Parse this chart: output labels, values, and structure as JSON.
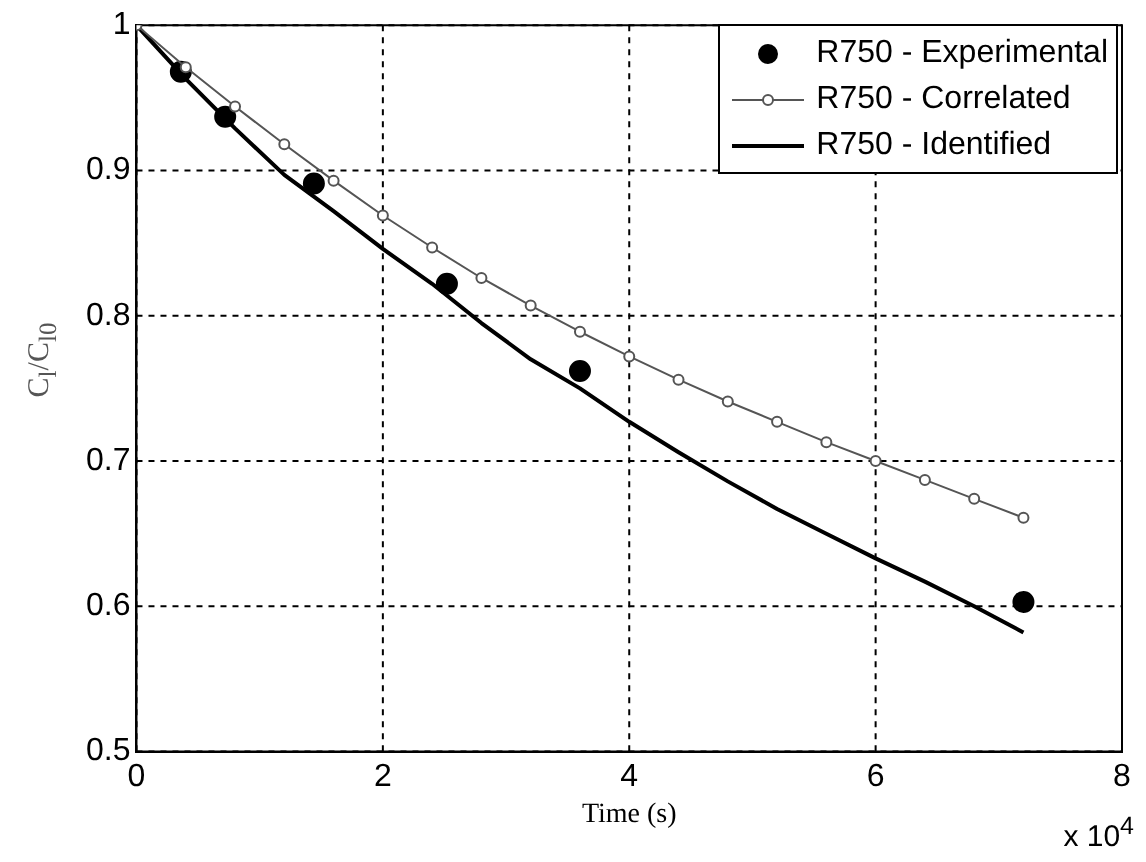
{
  "chart_data": {
    "type": "line",
    "xlabel": "Time (s)",
    "ylabel": "C$_{l}$/C$_{l0}$",
    "xlim": [
      0,
      8
    ],
    "xticks": [
      0,
      2,
      4,
      6,
      8
    ],
    "ylim": [
      0.5,
      1
    ],
    "yticks": [
      0.5,
      0.6,
      0.7,
      0.8,
      0.9,
      1
    ],
    "grid": true,
    "legend": "top right",
    "annotations": [
      "x 10$^{4}$"
    ],
    "series": [
      {
        "name": "R750 - Experimental",
        "type": "scatter",
        "marker": "circle",
        "color": "#000000",
        "x": [
          0.36,
          0.72,
          1.44,
          2.52,
          3.6,
          7.2
        ],
        "values": [
          0.968,
          0.937,
          0.891,
          0.822,
          0.762,
          0.603
        ]
      },
      {
        "name": "R750 - Correlated",
        "marker": "circle",
        "color": "#555555",
        "x": [
          0,
          0.4,
          0.8,
          1.2,
          1.6,
          2.0,
          2.4,
          2.8,
          3.2,
          3.6,
          4.0,
          4.4,
          4.8,
          5.2,
          5.6,
          6.0,
          6.4,
          6.8,
          7.2
        ],
        "values": [
          1.0,
          0.971,
          0.944,
          0.918,
          0.893,
          0.869,
          0.847,
          0.826,
          0.807,
          0.789,
          0.772,
          0.756,
          0.741,
          0.727,
          0.713,
          0.7,
          0.687,
          0.674,
          0.661
        ]
      },
      {
        "name": "R750 - Identified",
        "marker": "none",
        "color": "#000000",
        "x": [
          0,
          0.4,
          0.8,
          1.2,
          1.6,
          2.0,
          2.4,
          2.8,
          3.2,
          3.6,
          4.0,
          4.4,
          4.8,
          5.2,
          5.6,
          6.0,
          6.4,
          6.8,
          7.2
        ],
        "values": [
          1.0,
          0.963,
          0.929,
          0.897,
          0.872,
          0.846,
          0.822,
          0.795,
          0.77,
          0.75,
          0.727,
          0.706,
          0.686,
          0.667,
          0.65,
          0.633,
          0.617,
          0.6,
          0.582
        ]
      }
    ]
  }
}
